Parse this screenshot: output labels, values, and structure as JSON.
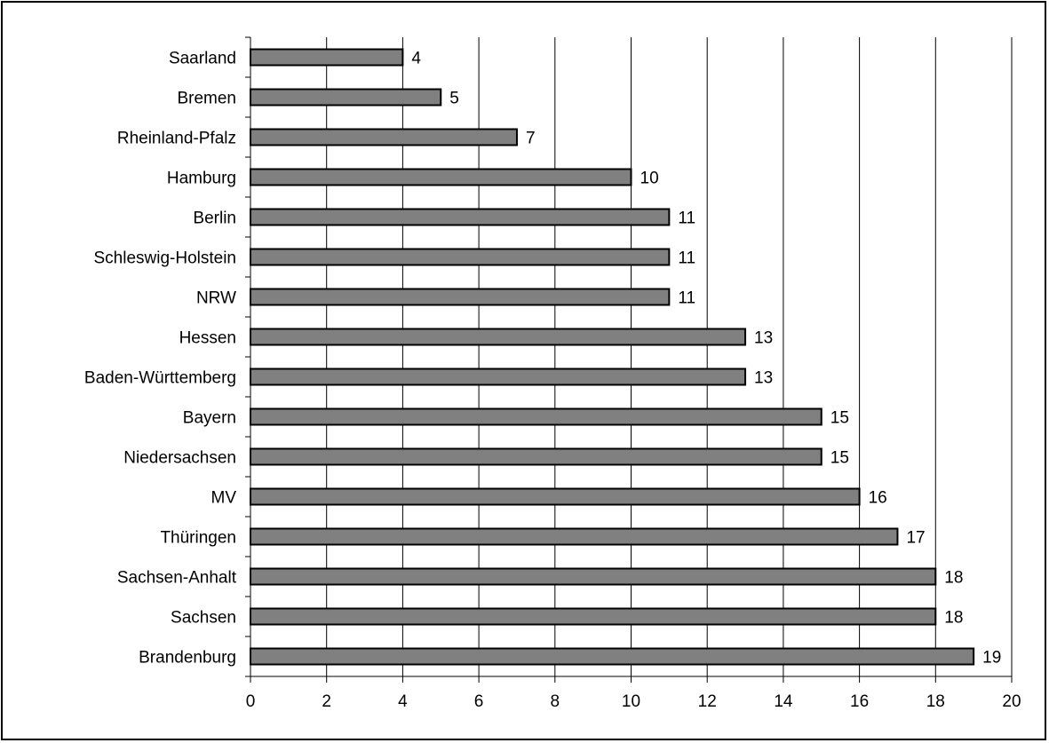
{
  "chart_data": {
    "type": "bar",
    "orientation": "horizontal",
    "categories": [
      "Saarland",
      "Bremen",
      "Rheinland-Pfalz",
      "Hamburg",
      "Berlin",
      "Schleswig-Holstein",
      "NRW",
      "Hessen",
      "Baden-Württemberg",
      "Bayern",
      "Niedersachsen",
      "MV",
      "Thüringen",
      "Sachsen-Anhalt",
      "Sachsen",
      "Brandenburg"
    ],
    "values": [
      4,
      5,
      7,
      10,
      11,
      11,
      11,
      13,
      13,
      15,
      15,
      16,
      17,
      18,
      18,
      19
    ],
    "data_labels": [
      "4",
      "5",
      "7",
      "10",
      "11",
      "11",
      "11",
      "13",
      "13",
      "15",
      "15",
      "16",
      "17",
      "18",
      "18",
      "19"
    ],
    "xlim": [
      0,
      20
    ],
    "xticks": [
      0,
      2,
      4,
      6,
      8,
      10,
      12,
      14,
      16,
      18,
      20
    ],
    "xtick_labels": [
      "0",
      "2",
      "4",
      "6",
      "8",
      "10",
      "12",
      "14",
      "16",
      "18",
      "20"
    ],
    "grid": "vertical",
    "legend": "none",
    "title": "",
    "xlabel": "",
    "ylabel": "",
    "colors": {
      "bar_fill": "#808080",
      "bar_stroke": "#000000",
      "grid": "#000000"
    }
  }
}
